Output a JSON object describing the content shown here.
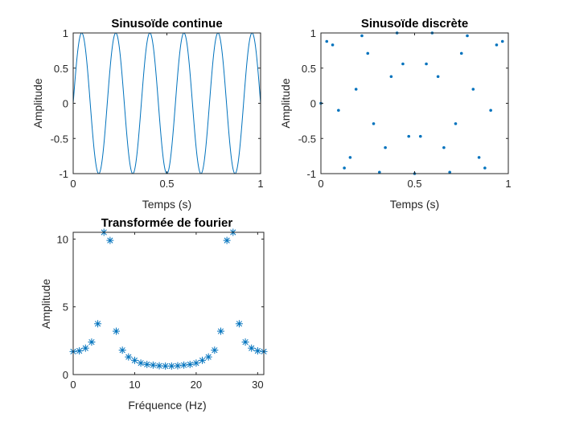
{
  "colors": {
    "series": "#0072bd",
    "axes": "#262626",
    "background": "#ffffff"
  },
  "chart_data": [
    {
      "type": "line",
      "title": "Sinusoïde continue",
      "xlabel": "Temps (s)",
      "ylabel": "Amplitude",
      "xlim": [
        0,
        1
      ],
      "ylim": [
        -1,
        1
      ],
      "xticks": [
        0,
        0.5,
        1
      ],
      "xticklabels": [
        "0",
        "0.5",
        "1"
      ],
      "yticks": [
        -1,
        -0.5,
        0,
        0.5,
        1
      ],
      "yticklabels": [
        "-1",
        "-0.5",
        "0",
        "0.5",
        "1"
      ],
      "grid": false,
      "series": [
        {
          "function": "sin(2*pi*5.5*t)",
          "frequency": 5.5,
          "amplitude": 1,
          "x_range": [
            0,
            1
          ]
        }
      ]
    },
    {
      "type": "scatter",
      "title": "Sinusoïde discrète",
      "xlabel": "Temps (s)",
      "ylabel": "Amplitude",
      "xlim": [
        0,
        1
      ],
      "ylim": [
        -1,
        1
      ],
      "xticks": [
        0,
        0.5,
        1
      ],
      "xticklabels": [
        "0",
        "0.5",
        "1"
      ],
      "yticks": [
        -1,
        -0.5,
        0,
        0.5,
        1
      ],
      "yticklabels": [
        "-1",
        "-0.5",
        "0",
        "0.5",
        "1"
      ],
      "grid": false,
      "marker": "dot",
      "series": [
        {
          "x": [
            0,
            0.0312,
            0.0625,
            0.0938,
            0.125,
            0.1562,
            0.1875,
            0.2188,
            0.25,
            0.2812,
            0.3125,
            0.3438,
            0.375,
            0.4062,
            0.4375,
            0.4688,
            0.5,
            0.5312,
            0.5625,
            0.5938,
            0.625,
            0.6562,
            0.6875,
            0.7188,
            0.75,
            0.7812,
            0.8125,
            0.8438,
            0.875,
            0.9062,
            0.9375,
            0.9688
          ],
          "y": [
            0,
            0.88,
            0.83,
            -0.1,
            -0.92,
            -0.77,
            0.2,
            0.96,
            0.71,
            -0.29,
            -0.98,
            -0.63,
            0.38,
            1.0,
            0.56,
            -0.47,
            -1.0,
            -0.47,
            0.56,
            1.0,
            0.38,
            -0.63,
            -0.98,
            -0.29,
            0.71,
            0.96,
            0.2,
            -0.77,
            -0.92,
            -0.1,
            0.83,
            0.88
          ]
        }
      ]
    },
    {
      "type": "scatter",
      "title": "Transformée de fourier",
      "xlabel": "Fréquence (Hz)",
      "ylabel": "Amplitude",
      "xlim": [
        0,
        31
      ],
      "ylim": [
        0,
        10.5
      ],
      "xticks": [
        0,
        10,
        20,
        30
      ],
      "xticklabels": [
        "0",
        "10",
        "20",
        "30"
      ],
      "yticks": [
        0,
        5,
        10
      ],
      "yticklabels": [
        "0",
        "5",
        "10"
      ],
      "grid": false,
      "marker": "asterisk",
      "series": [
        {
          "x": [
            0,
            1,
            2,
            3,
            4,
            5,
            6,
            7,
            8,
            9,
            10,
            11,
            12,
            13,
            14,
            15,
            16,
            17,
            18,
            19,
            20,
            21,
            22,
            23,
            24,
            25,
            26,
            27,
            28,
            29,
            30,
            31
          ],
          "y": [
            1.7,
            1.75,
            1.95,
            2.4,
            3.75,
            10.5,
            9.9,
            3.2,
            1.8,
            1.3,
            1.05,
            0.85,
            0.75,
            0.7,
            0.65,
            0.63,
            0.63,
            0.65,
            0.7,
            0.75,
            0.85,
            1.05,
            1.3,
            1.8,
            3.2,
            9.9,
            10.5,
            3.75,
            2.4,
            1.95,
            1.75,
            1.7
          ]
        }
      ]
    }
  ]
}
